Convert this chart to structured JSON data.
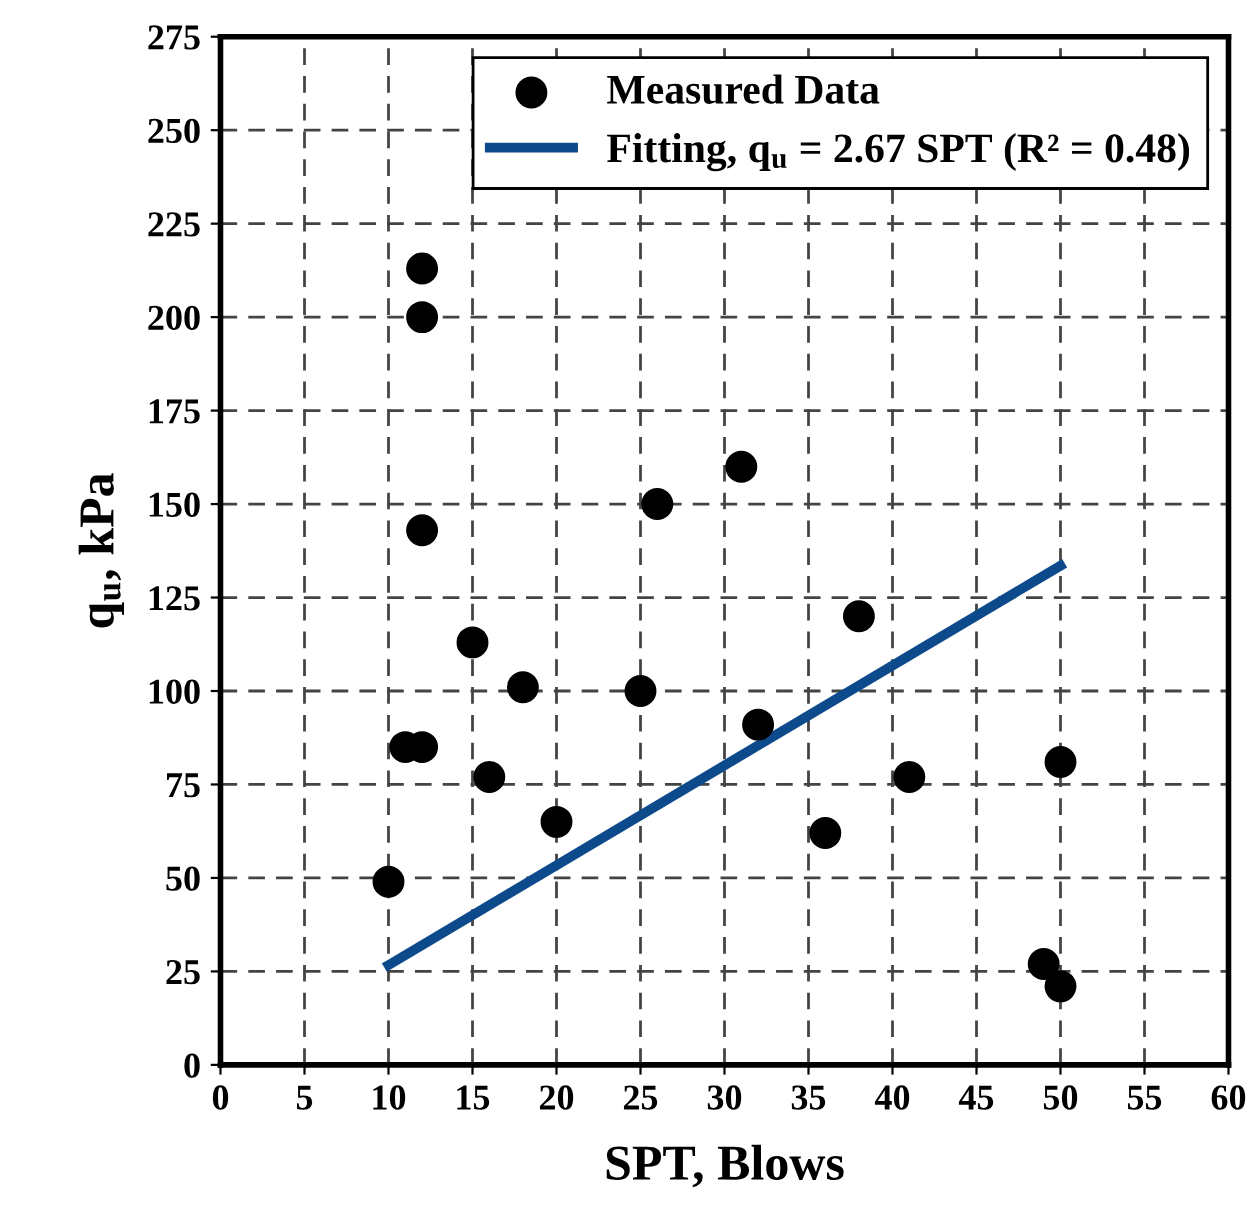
{
  "chart_data": {
    "type": "scatter",
    "xlabel": "SPT, Blows",
    "ylabel": "q$_{u}$, kPa",
    "xlim": [
      0,
      60
    ],
    "ylim": [
      0,
      275
    ],
    "xticks": [
      0,
      5,
      10,
      15,
      20,
      25,
      30,
      35,
      40,
      45,
      50,
      55,
      60
    ],
    "yticks": [
      0,
      25,
      50,
      75,
      100,
      125,
      150,
      175,
      200,
      225,
      250,
      275
    ],
    "grid": true,
    "legend": "top right",
    "series": [
      {
        "name": "Measured Data",
        "marker": "circle",
        "color": "#000000",
        "x": [
          10,
          11,
          12,
          12,
          12,
          12,
          15,
          16,
          18,
          20,
          25,
          26,
          31,
          32,
          36,
          38,
          41,
          49,
          50,
          50
        ],
        "values": [
          49,
          85,
          85,
          143,
          200,
          213,
          113,
          77,
          101,
          65,
          100,
          150,
          160,
          91,
          62,
          120,
          77,
          27,
          21,
          81
        ]
      },
      {
        "name": "Fitting, q$_{u}$ = 2.67 SPT (R² = 0.48)",
        "type": "line",
        "marker": "none",
        "line_style": "solid",
        "color": "#0d4a8c",
        "x": [
          10,
          50
        ],
        "values": [
          26.7,
          133.5
        ]
      }
    ]
  }
}
